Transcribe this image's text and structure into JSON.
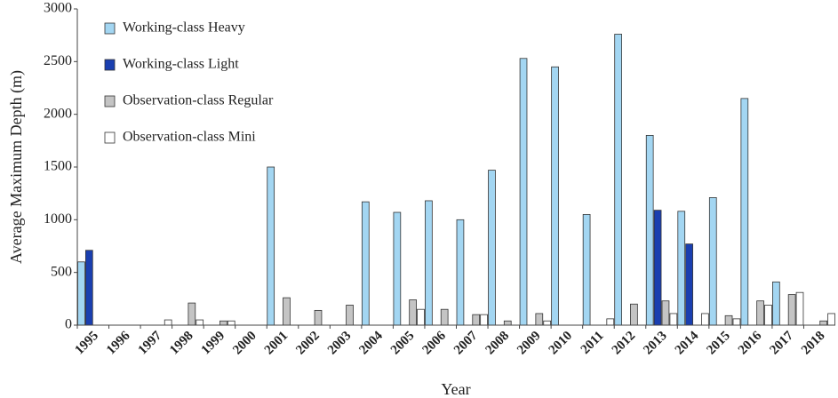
{
  "chart_data": {
    "type": "bar",
    "x_label": "Year",
    "y_label": "Average Maximum Depth (m)",
    "categories": [
      "1995",
      "1996",
      "1997",
      "1998",
      "1999",
      "2000",
      "2001",
      "2002",
      "2003",
      "2004",
      "2005",
      "2006",
      "2007",
      "2008",
      "2009",
      "2010",
      "2011",
      "2012",
      "2013",
      "2014",
      "2015",
      "2016",
      "2017",
      "2018"
    ],
    "series": [
      {
        "name": "Working-class Heavy",
        "color": "#a3d6f2",
        "values": [
          600,
          null,
          null,
          null,
          null,
          null,
          1500,
          null,
          null,
          1170,
          1070,
          1180,
          1000,
          1470,
          2530,
          2450,
          1050,
          2760,
          1800,
          1080,
          1210,
          2150,
          410,
          null
        ]
      },
      {
        "name": "Working-class Light",
        "color": "#1a3fb0",
        "values": [
          710,
          null,
          null,
          null,
          null,
          null,
          null,
          null,
          null,
          null,
          null,
          null,
          null,
          null,
          null,
          null,
          null,
          null,
          1090,
          770,
          null,
          null,
          null,
          null
        ]
      },
      {
        "name": "Observation-class Regular",
        "color": "#c4c4c4",
        "values": [
          null,
          null,
          null,
          210,
          40,
          null,
          260,
          140,
          190,
          null,
          240,
          150,
          100,
          40,
          110,
          null,
          null,
          200,
          230,
          null,
          90,
          230,
          290,
          40
        ]
      },
      {
        "name": "Observation-class Mini",
        "color": "#ffffff",
        "values": [
          null,
          null,
          50,
          50,
          40,
          null,
          null,
          null,
          null,
          null,
          150,
          null,
          100,
          null,
          40,
          null,
          60,
          null,
          110,
          110,
          60,
          190,
          310,
          110
        ]
      }
    ],
    "ylim": [
      0,
      3000
    ],
    "yticks": [
      0,
      500,
      1000,
      1500,
      2000,
      2500,
      3000
    ],
    "legend": "top-left"
  }
}
